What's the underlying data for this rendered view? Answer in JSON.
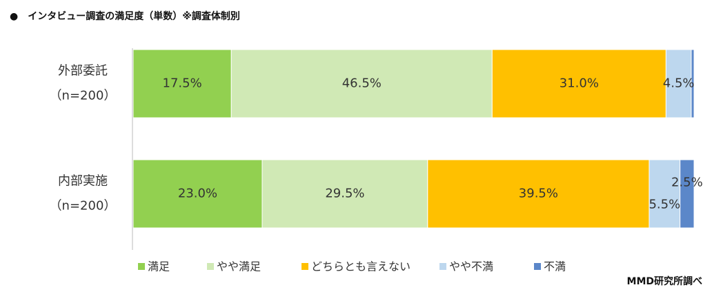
{
  "chart_data": {
    "type": "stacked-bar-horizontal-percent",
    "title": "●　インタビュー調査の満足度（単数）※調査体制別",
    "source": "MMD研究所調べ",
    "categories": [
      "外部委託",
      "内部実施"
    ],
    "category_notes": [
      "（n=200）",
      "（n=200）"
    ],
    "xlim": [
      0,
      100
    ],
    "series": [
      {
        "name": "満足",
        "color": "#92d050",
        "values": [
          17.5,
          23.0
        ],
        "value_labels": [
          "17.5%",
          "23.0%"
        ]
      },
      {
        "name": "やや満足",
        "color": "#d0e9b5",
        "values": [
          46.5,
          29.5
        ],
        "value_labels": [
          "46.5%",
          "29.5%"
        ]
      },
      {
        "name": "どちらとも言えない",
        "color": "#ffc000",
        "values": [
          31.0,
          39.5
        ],
        "value_labels": [
          "31.0%",
          "39.5%"
        ]
      },
      {
        "name": "やや不満",
        "color": "#bdd7ee",
        "values": [
          4.5,
          5.5
        ],
        "value_labels": [
          "4.5%",
          "5.5%"
        ]
      },
      {
        "name": "不満",
        "color": "#5b87c9",
        "values": [
          0.5,
          2.5
        ],
        "value_labels": [
          null,
          "2.5%"
        ]
      }
    ]
  }
}
